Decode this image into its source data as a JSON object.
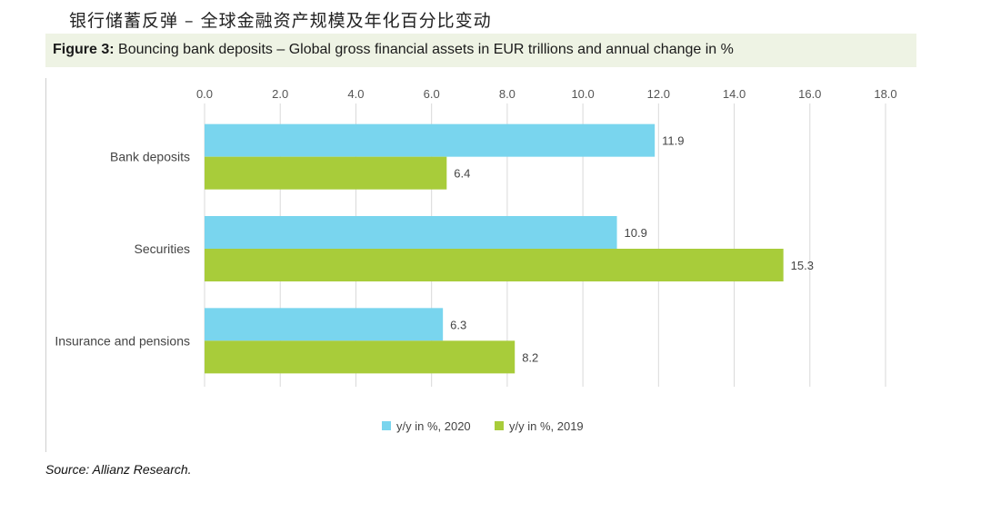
{
  "page_heading": "银行储蓄反弹 – 全球金融资产规模及年化百分比变动",
  "figure": {
    "label": "Figure 3:",
    "title": "Bouncing bank deposits – Global gross financial assets in EUR trillions and annual change in %"
  },
  "source": "Source: Allianz Research.",
  "chart_data": {
    "type": "bar",
    "orientation": "horizontal",
    "categories": [
      "Bank deposits",
      "Securities",
      "Insurance and pensions"
    ],
    "series": [
      {
        "name": "y/y in %, 2020",
        "values": [
          11.9,
          10.9,
          6.3
        ],
        "color": "#79d5ee"
      },
      {
        "name": "y/y in %, 2019",
        "values": [
          6.4,
          15.3,
          8.2
        ],
        "color": "#a8cc3a"
      }
    ],
    "xlim": [
      0,
      18
    ],
    "xticks": [
      "0.0",
      "2.0",
      "4.0",
      "6.0",
      "8.0",
      "10.0",
      "12.0",
      "14.0",
      "16.0",
      "18.0"
    ],
    "value_labels": [
      [
        "11.9",
        "10.9",
        "6.3"
      ],
      [
        "6.4",
        "15.3",
        "8.2"
      ]
    ],
    "grid": true,
    "legend_position": "bottom"
  }
}
